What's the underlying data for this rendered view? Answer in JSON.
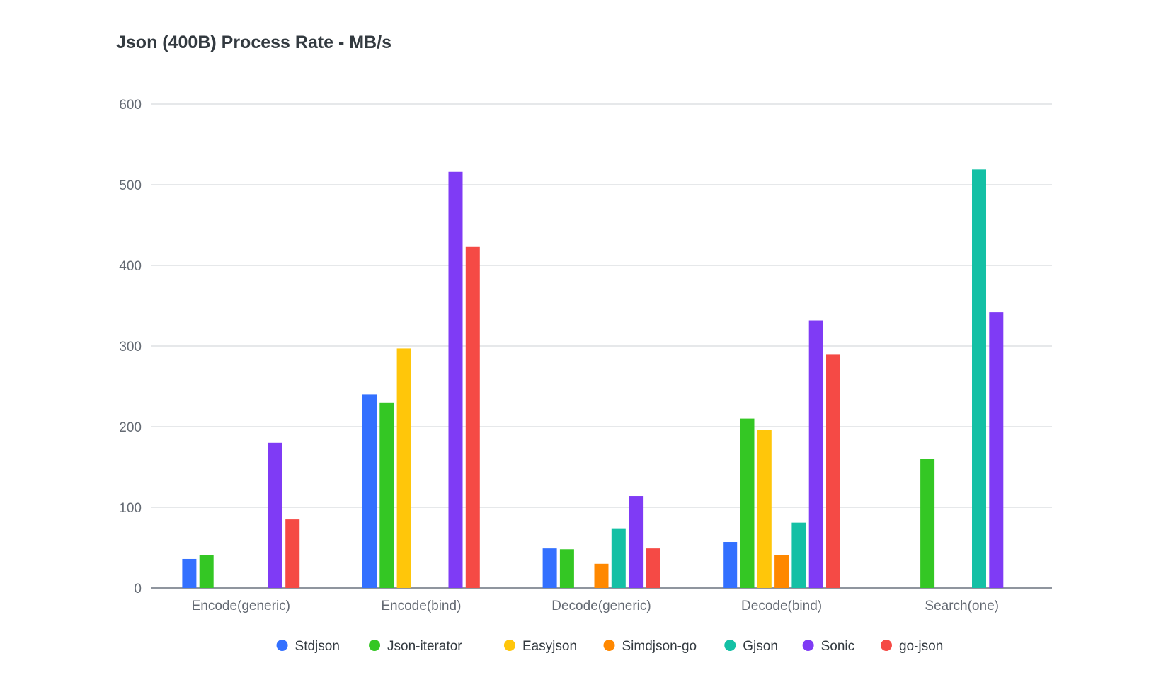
{
  "chart_data": {
    "type": "bar",
    "title": "Json (400B) Process Rate - MB/s",
    "xlabel": "",
    "ylabel": "",
    "ylim": [
      0,
      600
    ],
    "yticks": [
      0,
      100,
      200,
      300,
      400,
      500,
      600
    ],
    "grid": true,
    "legend_position": "bottom",
    "categories": [
      "Encode(generic)",
      "Encode(bind)",
      "Decode(generic)",
      "Decode(bind)",
      "Search(one)"
    ],
    "series": [
      {
        "name": "Stdjson",
        "color": "#3370ff",
        "values": [
          36,
          240,
          49,
          57,
          null
        ]
      },
      {
        "name": "Json-iterator",
        "color": "#34c724",
        "values": [
          41,
          230,
          48,
          210,
          160
        ]
      },
      {
        "name": "Easyjson",
        "color": "#ffc60a",
        "values": [
          null,
          297,
          null,
          196,
          null
        ]
      },
      {
        "name": "Simdjson-go",
        "color": "#ff8800",
        "values": [
          null,
          null,
          30,
          41,
          null
        ]
      },
      {
        "name": "Gjson",
        "color": "#14c0a5",
        "values": [
          null,
          null,
          74,
          81,
          519
        ]
      },
      {
        "name": "Sonic",
        "color": "#7f3bf5",
        "values": [
          180,
          516,
          114,
          332,
          342
        ]
      },
      {
        "name": "go-json",
        "color": "#f54a45",
        "values": [
          85,
          423,
          49,
          290,
          null
        ]
      }
    ]
  }
}
